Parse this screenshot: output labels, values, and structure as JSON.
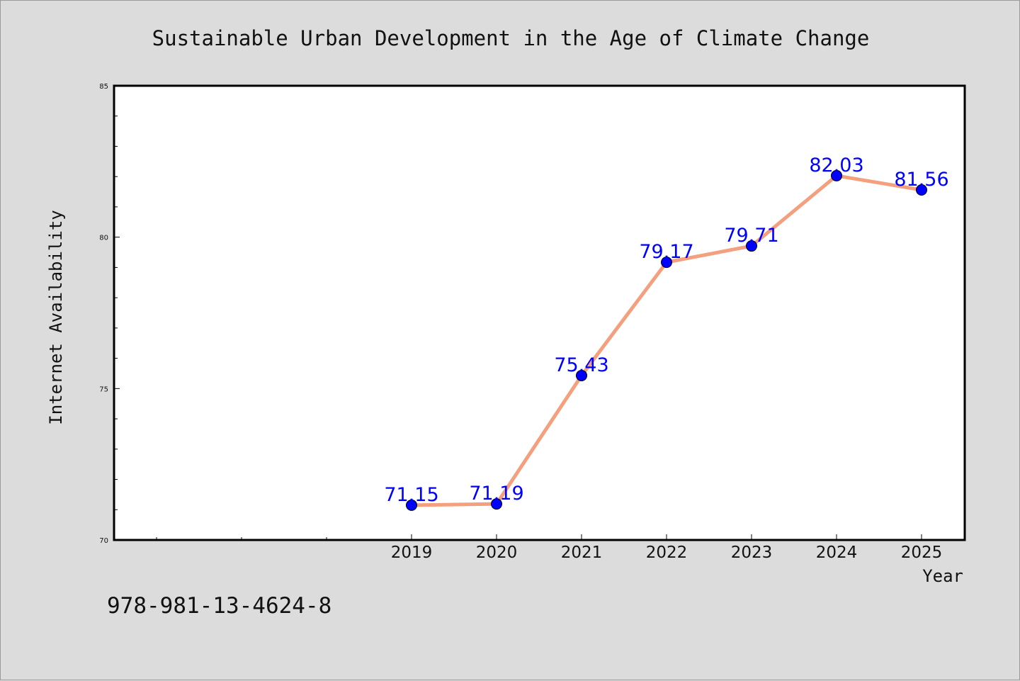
{
  "chart_data": {
    "type": "line",
    "title": "Sustainable Urban Development in the Age of Climate Change",
    "xlabel": "Year",
    "ylabel": "Internet Availability",
    "footer_text": "978-981-13-4624-8",
    "x": [
      "2019",
      "2020",
      "2021",
      "2022",
      "2023",
      "2024",
      "2025"
    ],
    "x_minor_positions_before_2019": 3,
    "series": [
      {
        "values": [
          71.15,
          71.19,
          75.43,
          79.17,
          79.71,
          82.03,
          81.56
        ],
        "data_labels": [
          "71.15",
          "71.19",
          "75.43",
          "79.17",
          "79.71",
          "82.03",
          "81.56"
        ]
      }
    ],
    "ylim": [
      70,
      85
    ],
    "y_ticks": [
      "70",
      "75",
      "80",
      "85"
    ],
    "y_minor_step": 1,
    "grid": false,
    "legend": "none",
    "colors": {
      "line": "#f4a07f",
      "marker": "#0000ff",
      "label": "#0000ff",
      "plot_bg": "#ffffff",
      "figure_bg": "#dcdcdc",
      "axes": "#000000"
    }
  }
}
